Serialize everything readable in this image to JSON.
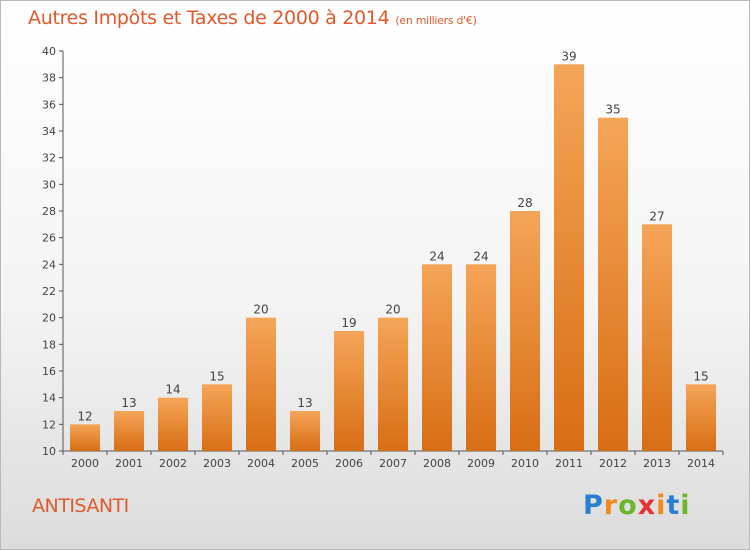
{
  "title": "Autres Impôts et Taxes de 2000 à 2014",
  "title_unit": "(en milliers d'€)",
  "commune": "ANTISANTI",
  "logo": {
    "letters": [
      "P",
      "r",
      "o",
      "x",
      "i",
      "t",
      "i"
    ]
  },
  "colors": {
    "bar_top": "#f5a558",
    "bar_bottom": "#d86e14",
    "title": "#e05a2b",
    "axis": "#555555",
    "label": "#444444"
  },
  "chart_data": {
    "type": "bar",
    "categories": [
      "2000",
      "2001",
      "2002",
      "2003",
      "2004",
      "2005",
      "2006",
      "2007",
      "2008",
      "2009",
      "2010",
      "2011",
      "2012",
      "2013",
      "2014"
    ],
    "values": [
      12,
      13,
      14,
      15,
      20,
      13,
      19,
      20,
      24,
      24,
      28,
      39,
      35,
      27,
      15
    ],
    "ylim": [
      10,
      40
    ],
    "yticks": [
      10,
      12,
      14,
      16,
      18,
      20,
      22,
      24,
      26,
      28,
      30,
      32,
      34,
      36,
      38,
      40
    ],
    "grid": false
  }
}
